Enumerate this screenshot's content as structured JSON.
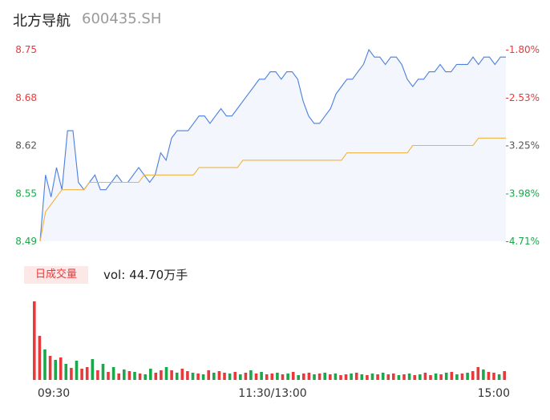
{
  "header": {
    "stock_name": "北方导航",
    "stock_code": "600435.SH"
  },
  "volume_header": {
    "badge_label": "日成交量",
    "vol_prefix": "vol:",
    "vol_value": "44.70万手"
  },
  "colors": {
    "price_line": "#4a7fe0",
    "avg_line": "#f2b33d",
    "price_fill": "#f3f6fc",
    "up": "#e83a3a",
    "down": "#1aa84a",
    "axis_text": "#555555"
  },
  "chart_data": [
    {
      "type": "line",
      "y_ticks_left": [
        "8.75",
        "8.68",
        "8.62",
        "8.55",
        "8.49"
      ],
      "y_ticks_right": [
        "-1.80%",
        "-2.53%",
        "-3.25%",
        "-3.98%",
        "-4.71%"
      ],
      "ylim": [
        8.49,
        8.75
      ],
      "series": [
        {
          "role": "price",
          "values": [
            8.49,
            8.58,
            8.55,
            8.59,
            8.56,
            8.64,
            8.64,
            8.57,
            8.56,
            8.57,
            8.58,
            8.56,
            8.56,
            8.57,
            8.58,
            8.57,
            8.57,
            8.58,
            8.59,
            8.58,
            8.57,
            8.58,
            8.61,
            8.6,
            8.63,
            8.64,
            8.64,
            8.64,
            8.65,
            8.66,
            8.66,
            8.65,
            8.66,
            8.67,
            8.66,
            8.66,
            8.67,
            8.68,
            8.69,
            8.7,
            8.71,
            8.71,
            8.72,
            8.72,
            8.71,
            8.72,
            8.72,
            8.71,
            8.68,
            8.66,
            8.65,
            8.65,
            8.66,
            8.67,
            8.69,
            8.7,
            8.71,
            8.71,
            8.72,
            8.73,
            8.75,
            8.74,
            8.74,
            8.73,
            8.74,
            8.74,
            8.73,
            8.71,
            8.7,
            8.71,
            8.71,
            8.72,
            8.72,
            8.73,
            8.72,
            8.72,
            8.73,
            8.73,
            8.73,
            8.74,
            8.73,
            8.74,
            8.74,
            8.73,
            8.74,
            8.74
          ]
        },
        {
          "role": "average",
          "values": [
            8.49,
            8.53,
            8.54,
            8.55,
            8.56,
            8.56,
            8.56,
            8.56,
            8.56,
            8.57,
            8.57,
            8.57,
            8.57,
            8.57,
            8.57,
            8.57,
            8.57,
            8.57,
            8.57,
            8.58,
            8.58,
            8.58,
            8.58,
            8.58,
            8.58,
            8.58,
            8.58,
            8.58,
            8.58,
            8.59,
            8.59,
            8.59,
            8.59,
            8.59,
            8.59,
            8.59,
            8.59,
            8.6,
            8.6,
            8.6,
            8.6,
            8.6,
            8.6,
            8.6,
            8.6,
            8.6,
            8.6,
            8.6,
            8.6,
            8.6,
            8.6,
            8.6,
            8.6,
            8.6,
            8.6,
            8.6,
            8.61,
            8.61,
            8.61,
            8.61,
            8.61,
            8.61,
            8.61,
            8.61,
            8.61,
            8.61,
            8.61,
            8.61,
            8.62,
            8.62,
            8.62,
            8.62,
            8.62,
            8.62,
            8.62,
            8.62,
            8.62,
            8.62,
            8.62,
            8.62,
            8.63,
            8.63,
            8.63,
            8.63,
            8.63,
            8.63
          ]
        }
      ]
    },
    {
      "type": "bar",
      "x_ticks": [
        "09:30",
        "11:30/13:00",
        "15:00"
      ],
      "values": [
        98,
        55,
        38,
        30,
        25,
        28,
        20,
        15,
        24,
        14,
        16,
        26,
        12,
        20,
        10,
        16,
        8,
        13,
        11,
        10,
        8,
        7,
        14,
        9,
        12,
        16,
        12,
        9,
        14,
        11,
        9,
        8,
        7,
        12,
        9,
        11,
        9,
        8,
        10,
        7,
        9,
        12,
        8,
        10,
        7,
        8,
        9,
        7,
        8,
        10,
        6,
        8,
        9,
        7,
        8,
        9,
        7,
        8,
        6,
        7,
        8,
        9,
        7,
        6,
        8,
        7,
        9,
        7,
        8,
        6,
        7,
        8,
        6,
        7,
        9,
        6,
        8,
        7,
        9,
        10,
        7,
        8,
        9,
        11,
        16,
        13,
        10,
        9,
        7,
        11
      ],
      "colors": [
        "up",
        "up",
        "down",
        "up",
        "down",
        "up",
        "down",
        "up",
        "down",
        "up",
        "up",
        "down",
        "up",
        "down",
        "up",
        "down",
        "up",
        "down",
        "up",
        "down",
        "up",
        "down",
        "down",
        "up",
        "up",
        "down",
        "up",
        "down",
        "up",
        "up",
        "down",
        "up",
        "down",
        "up",
        "down",
        "up",
        "up",
        "down",
        "up",
        "down",
        "up",
        "down",
        "up",
        "down",
        "up",
        "up",
        "down",
        "up",
        "down",
        "up",
        "down",
        "up",
        "up",
        "down",
        "up",
        "down",
        "up",
        "down",
        "up",
        "up",
        "down",
        "up",
        "down",
        "up",
        "down",
        "up",
        "down",
        "up",
        "up",
        "down",
        "up",
        "down",
        "up",
        "down",
        "up",
        "up",
        "down",
        "up",
        "down",
        "up",
        "down",
        "up",
        "down",
        "up",
        "up",
        "down",
        "up",
        "up",
        "down",
        "up"
      ]
    }
  ]
}
